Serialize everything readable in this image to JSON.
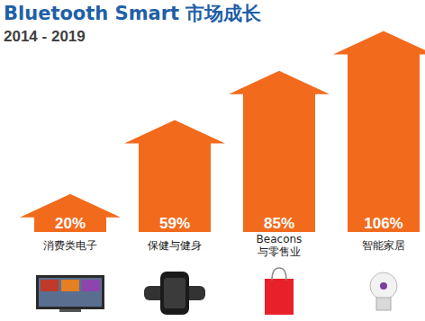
{
  "chart_data": {
    "type": "bar",
    "title": "Bluetooth Smart 市场成长",
    "subtitle": "2014 - 2019",
    "categories": [
      "消费类电子",
      "保健与健身",
      "Beacons\n与零售业",
      "智能家居"
    ],
    "values": [
      20,
      59,
      85,
      106
    ],
    "value_labels": [
      "20%",
      "59%",
      "85%",
      "106%"
    ],
    "color": "#f26b1d",
    "ylim": [
      0,
      110
    ],
    "data_labels": true,
    "tick_labels": false
  }
}
